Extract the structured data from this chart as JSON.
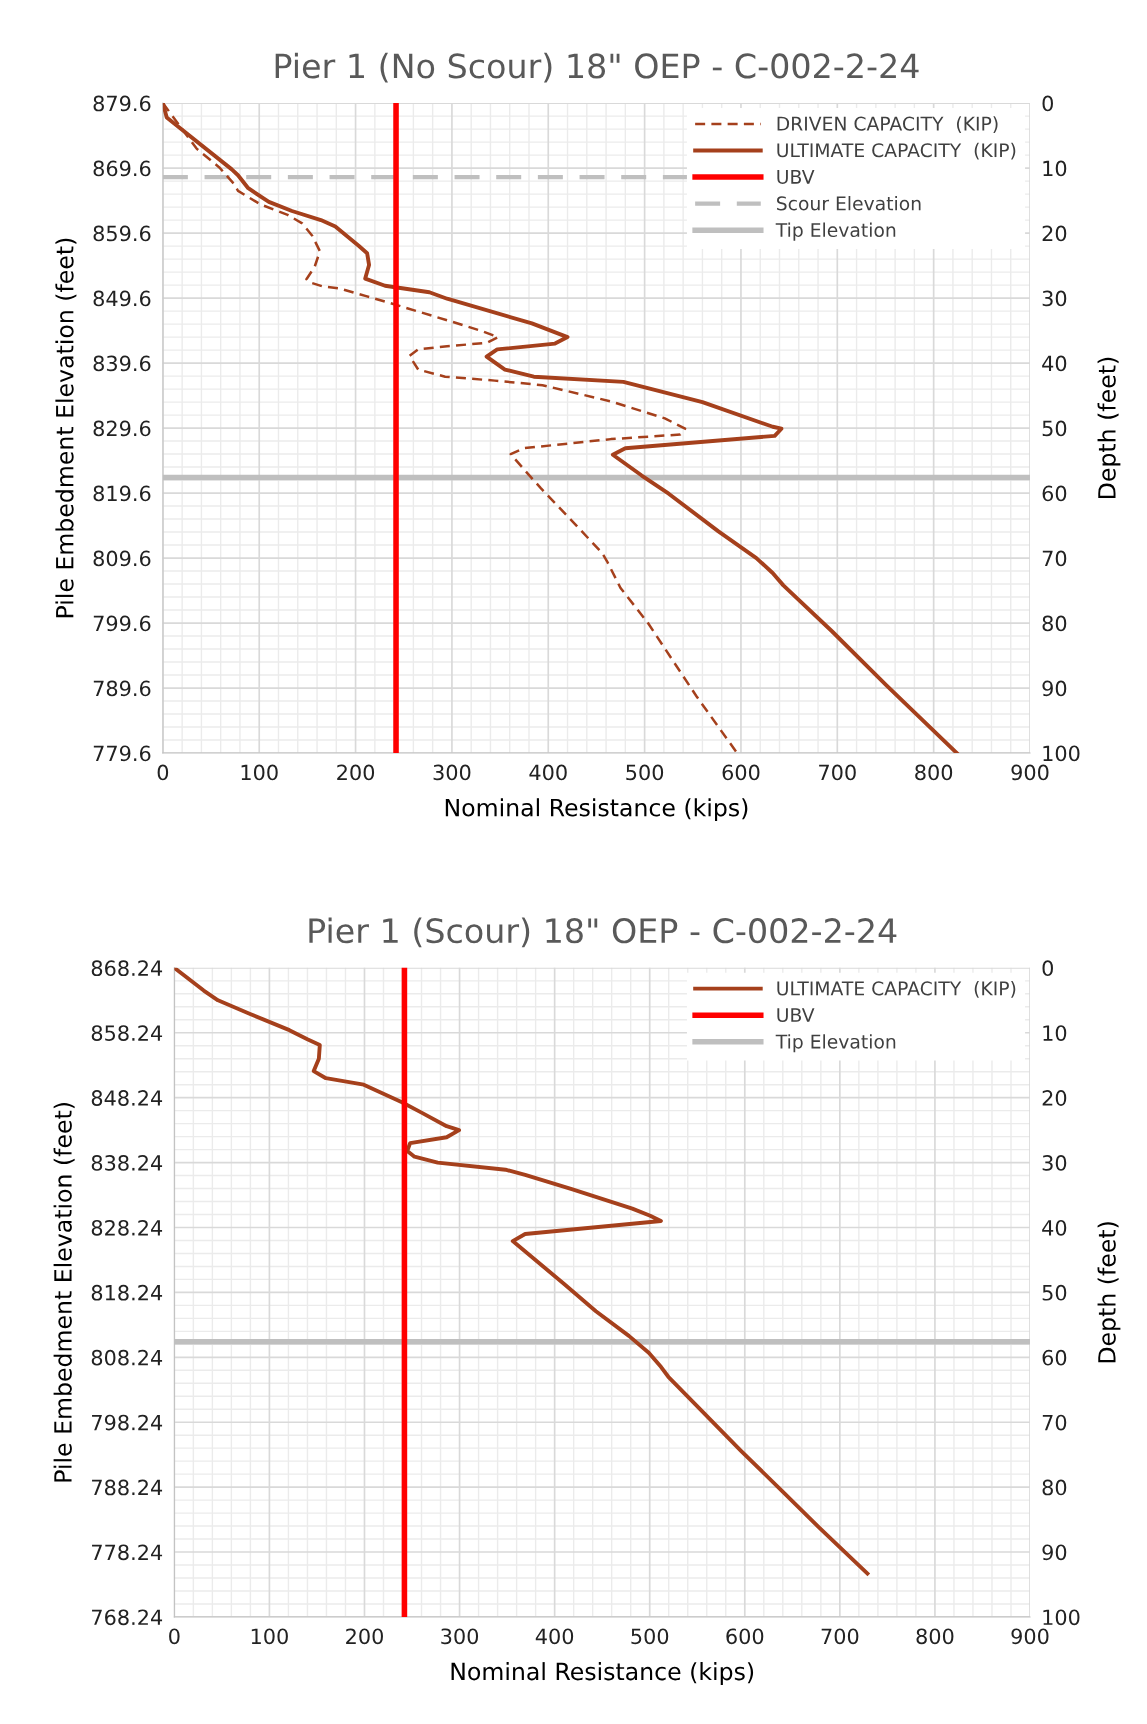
{
  "chart_data": [
    {
      "type": "line",
      "title": "Pier 1 (No Scour) 18\" OEP - C-002-2-24",
      "xlabel": "Nominal Resistance (kips)",
      "ylabel": "Pile Embedment Elevation (feet)",
      "y2label": "Depth (feet)",
      "xlim": [
        0,
        900
      ],
      "xticks": [
        0,
        100,
        200,
        300,
        400,
        500,
        600,
        700,
        800,
        900
      ],
      "ylim": [
        779.6,
        879.6
      ],
      "yticks": [
        779.6,
        789.6,
        799.6,
        809.6,
        819.6,
        829.6,
        839.6,
        849.6,
        859.6,
        869.6,
        879.6
      ],
      "y2lim": [
        100,
        0
      ],
      "y2ticks": [
        0,
        10,
        20,
        30,
        40,
        50,
        60,
        70,
        80,
        90,
        100
      ],
      "grid": true,
      "legend": "top right",
      "marker": "none",
      "series": [
        {
          "name": "DRIVEN CAPACITY  (KIP)",
          "color": "#a5401c",
          "axis": "y2",
          "line_style": "dashed",
          "x": [
            0,
            35,
            58.6,
            73.6,
            78,
            101.5,
            129.5,
            144.6,
            155,
            163,
            157.5,
            149,
            155,
            166,
            183,
            211,
            245.6,
            303.6,
            331.6,
            348,
            336,
            295,
            265,
            256,
            265,
            293,
            344.5,
            394,
            465,
            521,
            542,
            537,
            465,
            374.6,
            361,
            381,
            392,
            419,
            455.8,
            461,
            475,
            503.5,
            554,
            596
          ],
          "values": [
            0,
            7.0,
            9.9,
            12.4,
            13.5,
            15.6,
            17.2,
            18.5,
            20.4,
            22.8,
            25.2,
            27.1,
            27.7,
            28.2,
            28.5,
            29.7,
            31.2,
            33.8,
            35.1,
            36.0,
            36.9,
            37.4,
            37.9,
            38.9,
            41.0,
            42.1,
            42.7,
            43.4,
            45.9,
            48.5,
            50.1,
            51.0,
            51.7,
            53.1,
            54.0,
            57.4,
            59.2,
            63.4,
            69.2,
            70.5,
            74.6,
            80.0,
            91.3,
            100
          ]
        },
        {
          "name": "ULTIMATE CAPACITY  (KIP)",
          "color": "#a5401c",
          "axis": "y2",
          "line_style": "solid",
          "x": [
            0,
            4,
            71.5,
            78,
            88.6,
            110,
            134,
            164,
            179,
            203.5,
            212,
            214,
            210,
            230.6,
            276.6,
            295,
            383,
            420,
            407,
            347,
            336,
            355,
            385,
            478,
            560,
            633,
            642,
            635,
            480,
            467,
            497,
            525,
            576.6,
            616,
            632.9,
            644,
            694.7,
            751,
            824
          ],
          "values": [
            0,
            2.2,
            10.2,
            11.1,
            13.1,
            15.2,
            16.6,
            18.0,
            19.0,
            22.0,
            23.1,
            24.9,
            27.0,
            28.1,
            29.1,
            30.1,
            33.9,
            36.0,
            37.0,
            37.9,
            39.0,
            41.0,
            42.1,
            42.9,
            46.0,
            49.8,
            50.1,
            51.2,
            53.1,
            54.1,
            57.3,
            60.1,
            65.9,
            70.0,
            72.3,
            74.2,
            81.3,
            89.6,
            100
          ]
        },
        {
          "name": "UBV",
          "color": "#ff0000",
          "axis": "y2",
          "line_style": "solid",
          "x": [
            242,
            242
          ],
          "values": [
            0,
            100
          ]
        }
      ],
      "ref_lines": [
        {
          "axis": "y2",
          "value": 11.4,
          "label": "Scour Elevation",
          "color": "#bfbfbf",
          "line_style": "dashed"
        },
        {
          "axis": "y2",
          "value": 57.6,
          "label": "Tip Elevation",
          "color": "#bfbfbf",
          "line_style": "solid"
        }
      ]
    },
    {
      "type": "line",
      "title": "Pier 1 (Scour) 18\" OEP - C-002-2-24",
      "xlabel": "Nominal Resistance (kips)",
      "ylabel": "Pile Embedment Elevation (feet)",
      "y2label": "Depth (feet)",
      "xlim": [
        0,
        900
      ],
      "xticks": [
        0,
        100,
        200,
        300,
        400,
        500,
        600,
        700,
        800,
        900
      ],
      "ylim": [
        768.24,
        868.24
      ],
      "yticks": [
        768.24,
        778.24,
        788.24,
        798.24,
        808.24,
        818.24,
        828.24,
        838.24,
        848.24,
        858.24,
        868.24
      ],
      "y2lim": [
        100,
        0
      ],
      "y2ticks": [
        0,
        10,
        20,
        30,
        40,
        50,
        60,
        70,
        80,
        90,
        100
      ],
      "grid": true,
      "legend": "top right",
      "marker": "none",
      "series": [
        {
          "name": "ULTIMATE CAPACITY  (KIP)",
          "color": "#a5401c",
          "axis": "y2",
          "line_style": "solid",
          "x": [
            0,
            30.9,
            45.9,
            79.7,
            121,
            139.9,
            153,
            152,
            146.6,
            159.4,
            199.2,
            239.4,
            260,
            286.4,
            299.5,
            286.4,
            248,
            245,
            252.6,
            277,
            348.4,
            369,
            418,
            481.7,
            500.5,
            511.8,
            369,
            355.9,
            410,
            443.4,
            478.1,
            499,
            512,
            519.6,
            555,
            596,
            642,
            678,
            729
          ],
          "values": [
            0,
            3.5,
            5.0,
            7.1,
            9.6,
            11.0,
            11.9,
            14.0,
            15.9,
            17.0,
            18.0,
            20.7,
            22.3,
            24.4,
            25.0,
            26.1,
            27.0,
            28.2,
            29.1,
            30.0,
            31.1,
            31.9,
            34.1,
            37.1,
            38.2,
            39.0,
            41.0,
            42.1,
            48.7,
            52.9,
            56.7,
            59.3,
            61.5,
            63.0,
            68.3,
            74.4,
            81.0,
            86.2,
            93.3
          ]
        },
        {
          "name": "UBV",
          "color": "#ff0000",
          "axis": "y2",
          "line_style": "solid",
          "x": [
            242,
            242
          ],
          "values": [
            0,
            100
          ]
        }
      ],
      "ref_lines": [
        {
          "axis": "y2",
          "value": 57.6,
          "label": "Tip Elevation",
          "color": "#bfbfbf",
          "line_style": "solid"
        }
      ]
    }
  ]
}
